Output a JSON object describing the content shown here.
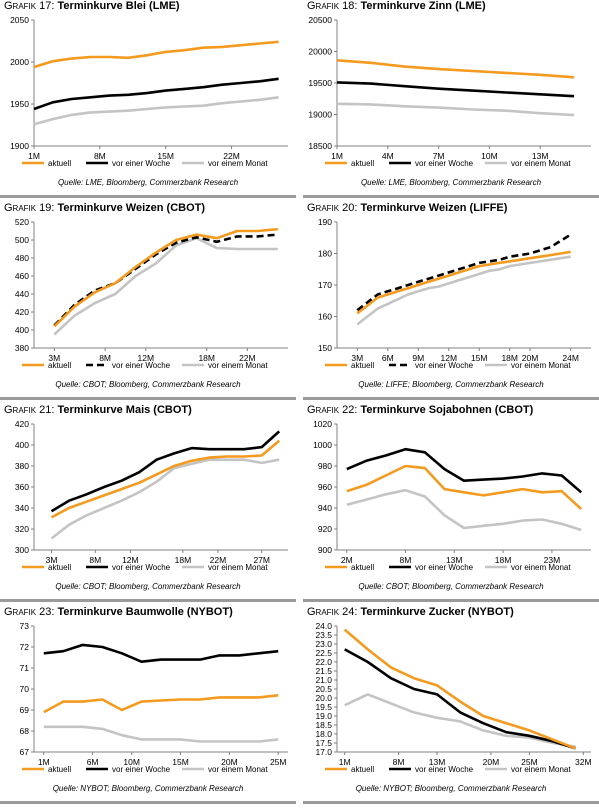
{
  "colors": {
    "aktuell": "#f39a1f",
    "woche": "#000000",
    "monat": "#c4c4c4",
    "axis": "#808080",
    "rule": "#9a9a9a"
  },
  "charts": [
    {
      "prefix": "Grafik 17:",
      "name": "Terminkurve Blei (LME)",
      "source": "Quelle: LME, Bloomberg, Commerzbank Research",
      "chart_data": {
        "type": "line",
        "x": [
          1,
          3,
          5,
          7,
          9,
          11,
          13,
          15,
          17,
          19,
          21,
          23,
          25,
          27
        ],
        "ticks": [
          "1M",
          "8M",
          "15M",
          "22M"
        ],
        "tick_x": [
          1,
          8,
          15,
          22
        ],
        "xlim": [
          1,
          28
        ],
        "ylim": [
          1900,
          2050
        ],
        "yticks": [
          1900,
          1950,
          2000,
          2050
        ],
        "series": [
          {
            "name": "aktuell",
            "key": "aktuell",
            "values": [
              1994,
              2001,
              2004,
              2006,
              2006,
              2005,
              2008,
              2012,
              2014,
              2017,
              2018,
              2020,
              2022,
              2024
            ]
          },
          {
            "name": "vor einer Woche",
            "key": "woche",
            "values": [
              1944,
              1952,
              1956,
              1958,
              1960,
              1961,
              1963,
              1966,
              1968,
              1970,
              1973,
              1975,
              1977,
              1980
            ]
          },
          {
            "name": "vor einem Monat",
            "key": "monat",
            "values": [
              1926,
              1932,
              1937,
              1940,
              1941,
              1942,
              1944,
              1946,
              1947,
              1948,
              1951,
              1953,
              1955,
              1958
            ]
          }
        ]
      }
    },
    {
      "prefix": "Grafik 18:",
      "name": "Terminkurve Zinn (LME)",
      "source": "Quelle: LME, Bloomberg, Commerzbank Research",
      "chart_data": {
        "type": "line",
        "x": [
          1,
          3,
          5,
          7,
          9,
          11,
          13,
          15
        ],
        "ticks": [
          "1M",
          "4M",
          "7M",
          "10M",
          "13M"
        ],
        "tick_x": [
          1,
          4,
          7,
          10,
          13
        ],
        "xlim": [
          1,
          16
        ],
        "ylim": [
          18500,
          20500
        ],
        "yticks": [
          18500,
          19000,
          19500,
          20000,
          20500
        ],
        "series": [
          {
            "name": "aktuell",
            "key": "aktuell",
            "values": [
              19860,
              19820,
              19760,
              19720,
              19690,
              19660,
              19630,
              19590
            ]
          },
          {
            "name": "vor einer Woche",
            "key": "woche",
            "values": [
              19510,
              19490,
              19450,
              19410,
              19380,
              19350,
              19320,
              19290
            ]
          },
          {
            "name": "vor einem Monat",
            "key": "monat",
            "values": [
              19170,
              19160,
              19130,
              19110,
              19080,
              19060,
              19020,
              18990
            ]
          }
        ]
      }
    },
    {
      "prefix": "Grafik 19:",
      "name": "Terminkurve Weizen (CBOT)",
      "source": "Quelle: CBOT; Bloomberg, Commerzbank Research",
      "chart_data": {
        "type": "line",
        "x": [
          3,
          5,
          7,
          9,
          11,
          13,
          15,
          17,
          19,
          21,
          23,
          25
        ],
        "ticks": [
          "3M",
          "8M",
          "12M",
          "18M",
          "22M"
        ],
        "tick_x": [
          3,
          8,
          12,
          18,
          22
        ],
        "xlim": [
          1,
          26
        ],
        "ylim": [
          380,
          520
        ],
        "yticks": [
          380,
          400,
          420,
          440,
          460,
          480,
          500,
          520
        ],
        "series": [
          {
            "name": "aktuell",
            "key": "aktuell",
            "values": [
              404,
              426,
              442,
              452,
              470,
              486,
              500,
              506,
              502,
              510,
              510,
              512
            ]
          },
          {
            "name": "vor einer Woche",
            "key": "woche",
            "values": [
              405,
              428,
              444,
              452,
              468,
              484,
              497,
              503,
              498,
              504,
              504,
              506
            ]
          },
          {
            "name": "vor einem Monat",
            "key": "monat",
            "values": [
              395,
              416,
              430,
              440,
              460,
              474,
              494,
              502,
              491,
              490,
              490,
              490
            ]
          }
        ]
      }
    },
    {
      "prefix": "Grafik 20:",
      "name": "Terminkurve Weizen (LIFFE)",
      "source": "Quelle: LIFFE; Bloomberg, Commerzbank Research",
      "chart_data": {
        "type": "line",
        "x": [
          3,
          4,
          5,
          6,
          7,
          8,
          9,
          10,
          11,
          12,
          13,
          14,
          15,
          16,
          17,
          18,
          19,
          20,
          21,
          22,
          23,
          24
        ],
        "ticks": [
          "3M",
          "6M",
          "9M",
          "12M",
          "15M",
          "18M",
          "20M",
          "24M"
        ],
        "tick_x": [
          3,
          6,
          9,
          12,
          15,
          18,
          20,
          24
        ],
        "xlim": [
          1,
          26
        ],
        "ylim": [
          150,
          190
        ],
        "yticks": [
          150,
          160,
          170,
          180,
          190
        ],
        "series": [
          {
            "name": "aktuell",
            "key": "aktuell",
            "values": [
              161,
              163.5,
              166,
              167,
              168,
              169,
              170,
              171,
              172,
              173,
              174,
              175,
              176,
              176.5,
              177,
              177.5,
              178,
              178.5,
              179,
              179.5,
              180,
              180.5
            ]
          },
          {
            "name": "vor einer Woche",
            "key": "woche",
            "values": [
              162,
              164.5,
              167,
              168,
              169,
              170,
              171,
              172,
              173,
              174,
              175,
              176,
              177,
              177.5,
              178,
              179,
              179.5,
              180,
              181,
              182,
              184,
              186
            ]
          },
          {
            "name": "vor einem Monat",
            "key": "monat",
            "values": [
              157.5,
              160,
              162.5,
              164,
              165.5,
              167,
              168,
              169,
              169.5,
              170.5,
              171.5,
              172.5,
              173.5,
              174.5,
              175,
              176,
              176.5,
              177,
              177.5,
              178,
              178.5,
              179
            ]
          }
        ]
      }
    },
    {
      "prefix": "Grafik 21:",
      "name": "Terminkurve Mais (CBOT)",
      "source": "Quelle: CBOT; Bloomberg, Commerzbank Research",
      "chart_data": {
        "type": "line",
        "x": [
          3,
          5,
          7,
          9,
          11,
          13,
          15,
          17,
          19,
          21,
          23,
          25,
          27,
          29
        ],
        "ticks": [
          "3M",
          "8M",
          "12M",
          "18M",
          "22M",
          "27M"
        ],
        "tick_x": [
          3,
          8,
          12,
          18,
          22,
          27
        ],
        "xlim": [
          1,
          30
        ],
        "ylim": [
          300,
          420
        ],
        "yticks": [
          300,
          320,
          340,
          360,
          380,
          400,
          420
        ],
        "series": [
          {
            "name": "aktuell",
            "key": "aktuell",
            "values": [
              331,
              340,
              346,
              352,
              358,
              364,
              372,
              380,
              385,
              388,
              389,
              389,
              390,
              404
            ]
          },
          {
            "name": "vor einer Woche",
            "key": "woche",
            "values": [
              337,
              347,
              353,
              360,
              366,
              374,
              386,
              392,
              397,
              396,
              396,
              396,
              398,
              413
            ]
          },
          {
            "name": "vor einem Monat",
            "key": "monat",
            "values": [
              311,
              324,
              333,
              340,
              347,
              355,
              365,
              378,
              382,
              386,
              386,
              386,
              383,
              386
            ]
          }
        ]
      }
    },
    {
      "prefix": "Grafik 22:",
      "name": "Terminkurve Sojabohnen (CBOT)",
      "source": "Quelle: CBOT; Bloomberg, Commerzbank Research",
      "chart_data": {
        "type": "line",
        "x": [
          2,
          4,
          6,
          8,
          10,
          12,
          14,
          16,
          18,
          20,
          22,
          24,
          26
        ],
        "ticks": [
          "2M",
          "8M",
          "13M",
          "18M",
          "23M"
        ],
        "tick_x": [
          2,
          8,
          13,
          18,
          23
        ],
        "xlim": [
          1,
          27
        ],
        "ylim": [
          900,
          1020
        ],
        "yticks": [
          900,
          920,
          940,
          960,
          980,
          1000,
          1020
        ],
        "series": [
          {
            "name": "aktuell",
            "key": "aktuell",
            "values": [
              956,
              962,
              971,
              980,
              978,
              958,
              955,
              952,
              955,
              958,
              955,
              956,
              939
            ]
          },
          {
            "name": "vor einer Woche",
            "key": "woche",
            "values": [
              977,
              985,
              990,
              996,
              993,
              977,
              966,
              967,
              968,
              970,
              973,
              971,
              955
            ]
          },
          {
            "name": "vor einem Monat",
            "key": "monat",
            "values": [
              943,
              948,
              953,
              957,
              951,
              933,
              921,
              923,
              925,
              928,
              929,
              925,
              919
            ]
          }
        ]
      }
    },
    {
      "prefix": "Grafik 23:",
      "name": "Terminkurve Baumwolle (NYBOT)",
      "source": "Quelle: NYBOT; Bloomberg, Commerzbank Research",
      "chart_data": {
        "type": "line",
        "x": [
          1,
          3,
          5,
          7,
          9,
          11,
          13,
          15,
          17,
          19,
          21,
          23,
          25
        ],
        "ticks": [
          "1M",
          "6M",
          "10M",
          "15M",
          "20M",
          "25M"
        ],
        "tick_x": [
          1,
          6,
          10,
          15,
          20,
          25
        ],
        "xlim": [
          0,
          26
        ],
        "ylim": [
          67,
          73
        ],
        "yticks": [
          67,
          68,
          69,
          70,
          71,
          72,
          73
        ],
        "series": [
          {
            "name": "aktuell",
            "key": "aktuell",
            "values": [
              68.9,
              69.4,
              69.4,
              69.5,
              69.0,
              69.4,
              69.45,
              69.5,
              69.5,
              69.6,
              69.6,
              69.6,
              69.7
            ]
          },
          {
            "name": "vor einer Woche",
            "key": "woche",
            "values": [
              71.7,
              71.8,
              72.1,
              72.0,
              71.7,
              71.3,
              71.4,
              71.4,
              71.4,
              71.6,
              71.6,
              71.7,
              71.8
            ]
          },
          {
            "name": "vor einem Monat",
            "key": "monat",
            "values": [
              68.2,
              68.2,
              68.2,
              68.1,
              67.8,
              67.6,
              67.6,
              67.6,
              67.5,
              67.5,
              67.5,
              67.5,
              67.6
            ]
          }
        ]
      }
    },
    {
      "prefix": "Grafik 24:",
      "name": "Terminkurve Zucker (NYBOT)",
      "source": "Quelle: NYBOT; Bloomberg, Commerzbank Research",
      "chart_data": {
        "type": "line",
        "x": [
          1,
          4,
          7,
          10,
          13,
          16,
          19,
          22,
          25,
          28,
          31
        ],
        "ticks": [
          "1M",
          "8M",
          "13M",
          "20M",
          "25M",
          "32M"
        ],
        "tick_x": [
          1,
          8,
          13,
          20,
          25,
          32
        ],
        "xlim": [
          0,
          33
        ],
        "ylim": [
          17,
          24
        ],
        "yticks": [
          17,
          17.5,
          18,
          18.5,
          19,
          19.5,
          20,
          20.5,
          21,
          21.5,
          22,
          22.5,
          23,
          23.5,
          24
        ],
        "ydecimals": 1,
        "series": [
          {
            "name": "aktuell",
            "key": "aktuell",
            "values": [
              23.8,
              22.7,
              21.7,
              21.1,
              20.7,
              19.8,
              19.0,
              18.6,
              18.2,
              17.7,
              17.2
            ]
          },
          {
            "name": "vor einer Woche",
            "key": "woche",
            "values": [
              22.7,
              22.0,
              21.1,
              20.5,
              20.2,
              19.2,
              18.6,
              18.1,
              17.9,
              17.6,
              17.2
            ]
          },
          {
            "name": "vor einem Monat",
            "key": "monat",
            "values": [
              19.6,
              20.2,
              19.7,
              19.2,
              18.9,
              18.7,
              18.2,
              17.9,
              17.8,
              17.5,
              17.3
            ]
          }
        ]
      }
    }
  ]
}
